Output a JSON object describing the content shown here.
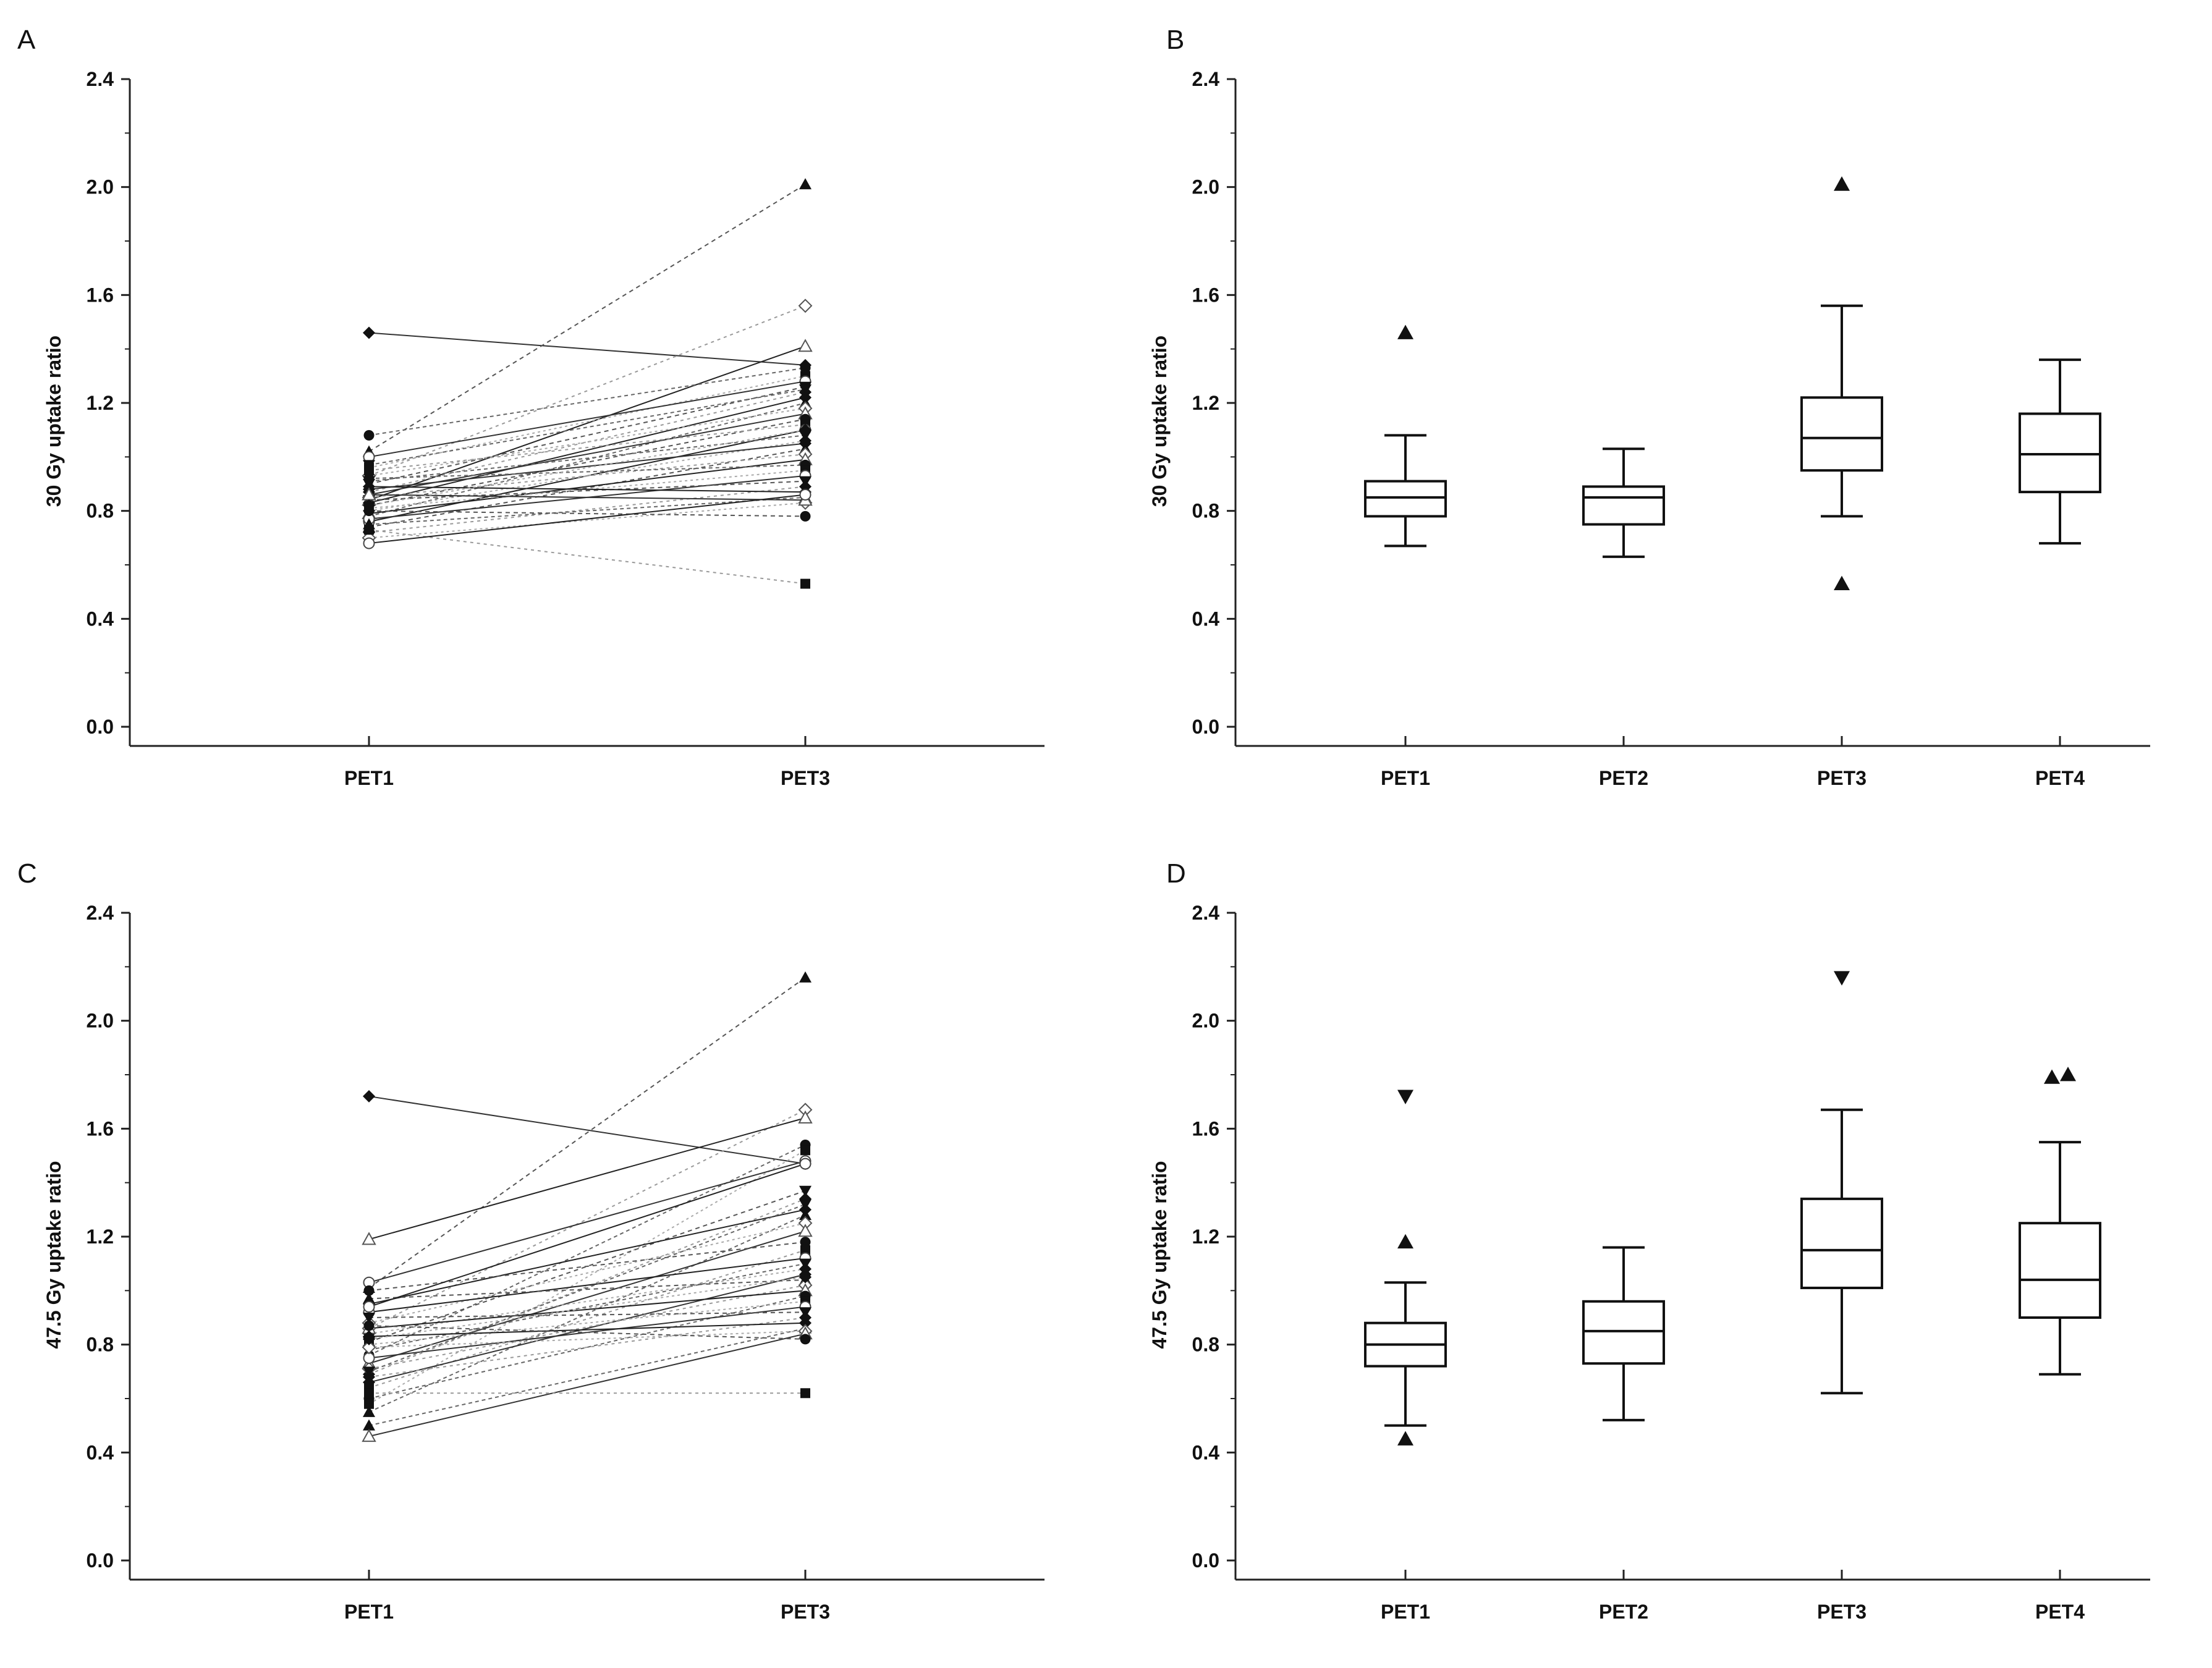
{
  "chart_data": [
    {
      "id": "A",
      "panel_label": "A",
      "type": "line",
      "subtype": "paired-lines",
      "ylabel": "30 Gy uptake ratio",
      "ylim": [
        0.0,
        2.4
      ],
      "yticks": [
        "0.0",
        "0.4",
        "0.8",
        "1.2",
        "1.6",
        "2.0",
        "2.4"
      ],
      "categories": [
        "PET1",
        "PET3"
      ],
      "pairs": [
        [
          1.46,
          1.34
        ],
        [
          1.02,
          2.01
        ],
        [
          0.93,
          1.56
        ],
        [
          0.84,
          1.41
        ],
        [
          1.08,
          1.33
        ],
        [
          0.96,
          1.3
        ],
        [
          1.0,
          1.28
        ],
        [
          0.9,
          1.26
        ],
        [
          0.87,
          1.24
        ],
        [
          0.83,
          1.22
        ],
        [
          0.78,
          1.2
        ],
        [
          0.93,
          1.18
        ],
        [
          0.86,
          1.16
        ],
        [
          0.82,
          1.14
        ],
        [
          0.95,
          1.12
        ],
        [
          0.76,
          1.1
        ],
        [
          0.91,
          1.08
        ],
        [
          0.8,
          1.06
        ],
        [
          0.88,
          1.05
        ],
        [
          0.74,
          1.03
        ],
        [
          0.85,
          1.01
        ],
        [
          0.79,
          0.99
        ],
        [
          0.92,
          0.97
        ],
        [
          0.81,
          0.95
        ],
        [
          0.77,
          0.93
        ],
        [
          0.84,
          0.91
        ],
        [
          0.72,
          0.89
        ],
        [
          0.89,
          0.87
        ],
        [
          0.75,
          0.85
        ],
        [
          0.7,
          0.83
        ],
        [
          0.86,
          0.84
        ],
        [
          0.8,
          0.78
        ],
        [
          0.73,
          0.53
        ],
        [
          0.68,
          0.86
        ],
        [
          0.97,
          1.25
        ],
        [
          0.82,
          1.1
        ]
      ]
    },
    {
      "id": "B",
      "panel_label": "B",
      "type": "box",
      "ylabel": "30 Gy uptake ratio",
      "ylim": [
        0.0,
        2.4
      ],
      "yticks": [
        "0.0",
        "0.4",
        "0.8",
        "1.2",
        "1.6",
        "2.0",
        "2.4"
      ],
      "categories": [
        "PET1",
        "PET2",
        "PET3",
        "PET4"
      ],
      "boxes": [
        {
          "whisker_low": 0.67,
          "q1": 0.78,
          "median": 0.85,
          "q3": 0.91,
          "whisker_high": 1.08,
          "outliers": [
            {
              "value": 1.46,
              "marker": "triangle-up"
            }
          ]
        },
        {
          "whisker_low": 0.63,
          "q1": 0.75,
          "median": 0.85,
          "q3": 0.89,
          "whisker_high": 1.03,
          "outliers": []
        },
        {
          "whisker_low": 0.78,
          "q1": 0.95,
          "median": 1.07,
          "q3": 1.22,
          "whisker_high": 1.56,
          "outliers": [
            {
              "value": 2.01,
              "marker": "triangle-up"
            },
            {
              "value": 0.53,
              "marker": "triangle-up"
            }
          ]
        },
        {
          "whisker_low": 0.68,
          "q1": 0.87,
          "median": 1.01,
          "q3": 1.16,
          "whisker_high": 1.36,
          "outliers": []
        }
      ]
    },
    {
      "id": "C",
      "panel_label": "C",
      "type": "line",
      "subtype": "paired-lines",
      "ylabel": "47.5 Gy uptake ratio",
      "ylim": [
        0.0,
        2.4
      ],
      "yticks": [
        "0.0",
        "0.4",
        "0.8",
        "1.2",
        "1.6",
        "2.0",
        "2.4"
      ],
      "categories": [
        "PET1",
        "PET3"
      ],
      "pairs": [
        [
          1.72,
          1.47
        ],
        [
          1.01,
          2.16
        ],
        [
          0.86,
          1.67
        ],
        [
          1.19,
          1.64
        ],
        [
          0.76,
          1.54
        ],
        [
          0.58,
          1.52
        ],
        [
          1.03,
          1.48
        ],
        [
          0.81,
          1.37
        ],
        [
          0.69,
          1.34
        ],
        [
          0.95,
          1.3
        ],
        [
          0.55,
          1.28
        ],
        [
          0.88,
          1.25
        ],
        [
          0.73,
          1.22
        ],
        [
          1.0,
          1.18
        ],
        [
          0.64,
          1.15
        ],
        [
          0.92,
          1.12
        ],
        [
          0.78,
          1.1
        ],
        [
          0.84,
          1.08
        ],
        [
          0.66,
          1.06
        ],
        [
          0.97,
          1.04
        ],
        [
          0.71,
          1.02
        ],
        [
          0.86,
          1.0
        ],
        [
          0.6,
          0.98
        ],
        [
          0.8,
          0.96
        ],
        [
          0.75,
          0.94
        ],
        [
          0.9,
          0.92
        ],
        [
          0.68,
          0.9
        ],
        [
          0.83,
          0.88
        ],
        [
          0.5,
          0.86
        ],
        [
          0.79,
          0.85
        ],
        [
          0.46,
          0.84
        ],
        [
          0.87,
          0.82
        ],
        [
          0.62,
          0.62
        ],
        [
          0.94,
          1.47
        ],
        [
          0.7,
          1.32
        ],
        [
          0.82,
          1.05
        ]
      ]
    },
    {
      "id": "D",
      "panel_label": "D",
      "type": "box",
      "ylabel": "47.5 Gy uptake ratio",
      "ylim": [
        0.0,
        2.4
      ],
      "yticks": [
        "0.0",
        "0.4",
        "0.8",
        "1.2",
        "1.6",
        "2.0",
        "2.4"
      ],
      "categories": [
        "PET1",
        "PET2",
        "PET3",
        "PET4"
      ],
      "boxes": [
        {
          "whisker_low": 0.5,
          "q1": 0.72,
          "median": 0.8,
          "q3": 0.88,
          "whisker_high": 1.03,
          "outliers": [
            {
              "value": 1.72,
              "marker": "triangle-down"
            },
            {
              "value": 1.18,
              "marker": "triangle-up"
            },
            {
              "value": 0.45,
              "marker": "triangle-up"
            }
          ]
        },
        {
          "whisker_low": 0.52,
          "q1": 0.73,
          "median": 0.85,
          "q3": 0.96,
          "whisker_high": 1.16,
          "outliers": []
        },
        {
          "whisker_low": 0.62,
          "q1": 1.01,
          "median": 1.15,
          "q3": 1.34,
          "whisker_high": 1.67,
          "outliers": [
            {
              "value": 2.16,
              "marker": "triangle-down"
            }
          ]
        },
        {
          "whisker_low": 0.69,
          "q1": 0.9,
          "median": 1.04,
          "q3": 1.25,
          "whisker_high": 1.55,
          "outliers": [
            {
              "value": 1.79,
              "marker": "triangle-up"
            },
            {
              "value": 1.8,
              "marker": "triangle-up"
            }
          ]
        }
      ]
    }
  ]
}
